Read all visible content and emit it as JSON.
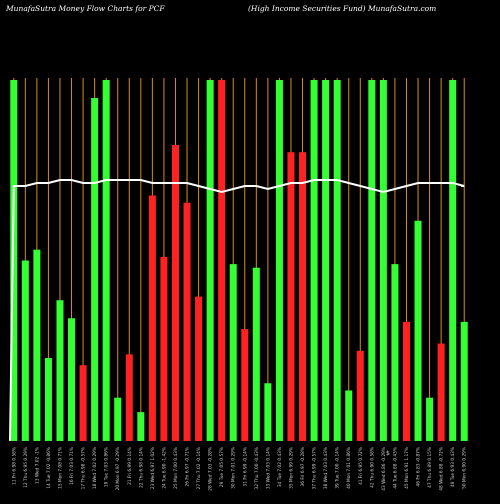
{
  "header": {
    "left": "MunafaSutra  Money Flow  Charts for PCF",
    "right": "(High Income   Securities Fund) MunafaSutra.com"
  },
  "colors": {
    "background": "#000000",
    "up": "#33ff33",
    "down": "#ff2222",
    "grid": "#d98c1a",
    "line": "#ffffff",
    "label": "#cccccc"
  },
  "chart_data": {
    "type": "bar",
    "title": "MunafaSutra  Money Flow  Charts for PCF",
    "subtitle": "(High Income   Securities Fund) MunafaSutra.com",
    "grid": "vertical",
    "note": "$",
    "value_scale_note": "relative bar heights, 0 = baseline, 100 = top of plot",
    "categories": [
      "11 Fri 6.98 0.58%",
      "12 Thu 6.95 0.29%",
      "13 Wed 7.02 -1%",
      "14 Tue 7.02 -0.86%",
      "15 Mon 7.08 0.71%",
      "16 Fri 7.03 0.71%",
      "17 Thu 6.98 -0.57%",
      "18 Wed 7.02 0.29%",
      "19 Tue 7.03 0.86%",
      "20 Mon 6.97 -0.29%",
      "21 Fri 6.99 0.14%",
      "22 Thu 6.98 0.14%",
      "23 Wed 6.97 1.02%",
      "24 Tue 6.90 -1.42%",
      "25 Mon 7.00 0.43%",
      "26 Fri 6.97 -0.71%",
      "27 Thu 7.02 -0.14%",
      "28 Wed 7.03 -0.28%",
      "29 Tue 7.05 0.57%",
      "30 Mon 7.01 0.29%",
      "31 Fri 6.99 -0.14%",
      "32 Thu 7.00 -0.43%",
      "33 Wed 7.03 0.14%",
      "34 Tue 7.02 0.43%",
      "35 Mon 6.99 0.29%",
      "36 Fri 6.97 -0.28%",
      "37 Thu 6.99 -0.57%",
      "38 Wed 7.03 0.43%",
      "39 Tue 7.00 -0.14%",
      "40 Mon 7.01 0.86%",
      "41 Fri 6.95 0.72%",
      "42 Thu 6.90 0.58%",
      "43 Wed 6.86 -0.29%",
      "44 Tue 6.88 -0.43%",
      "45 Mon 6.91 1.17%",
      "46 Fri 6.83 -0.87%",
      "47 Thu 6.89 0.15%",
      "48 Wed 6.88 -0.72%",
      "49 Tue 6.93 0.43%",
      "50 Mon 6.90 0.29%"
    ],
    "values": [
      100,
      50,
      53,
      23,
      39,
      34,
      21,
      95,
      100,
      12,
      24,
      8,
      68,
      51,
      82,
      66,
      40,
      100,
      100,
      49,
      31,
      48,
      16,
      100,
      80,
      80,
      100,
      100,
      100,
      14,
      25,
      100,
      100,
      49,
      33,
      61,
      12,
      27,
      100,
      33
    ],
    "directions": [
      "up",
      "up",
      "up",
      "up",
      "up",
      "up",
      "down",
      "up",
      "up",
      "up",
      "down",
      "up",
      "down",
      "down",
      "down",
      "down",
      "down",
      "up",
      "down",
      "up",
      "down",
      "up",
      "up",
      "up",
      "down",
      "down",
      "up",
      "up",
      "up",
      "up",
      "down",
      "up",
      "up",
      "up",
      "down",
      "up",
      "up",
      "down",
      "up",
      "up"
    ],
    "line": [
      98,
      98,
      99,
      99,
      100,
      100,
      99,
      99,
      100,
      100,
      100,
      100,
      99,
      99,
      99,
      99,
      98,
      97,
      96,
      97,
      98,
      98,
      97,
      98,
      99,
      99,
      100,
      100,
      100,
      99,
      98,
      97,
      96,
      97,
      98,
      99,
      99,
      99,
      99,
      98
    ]
  }
}
